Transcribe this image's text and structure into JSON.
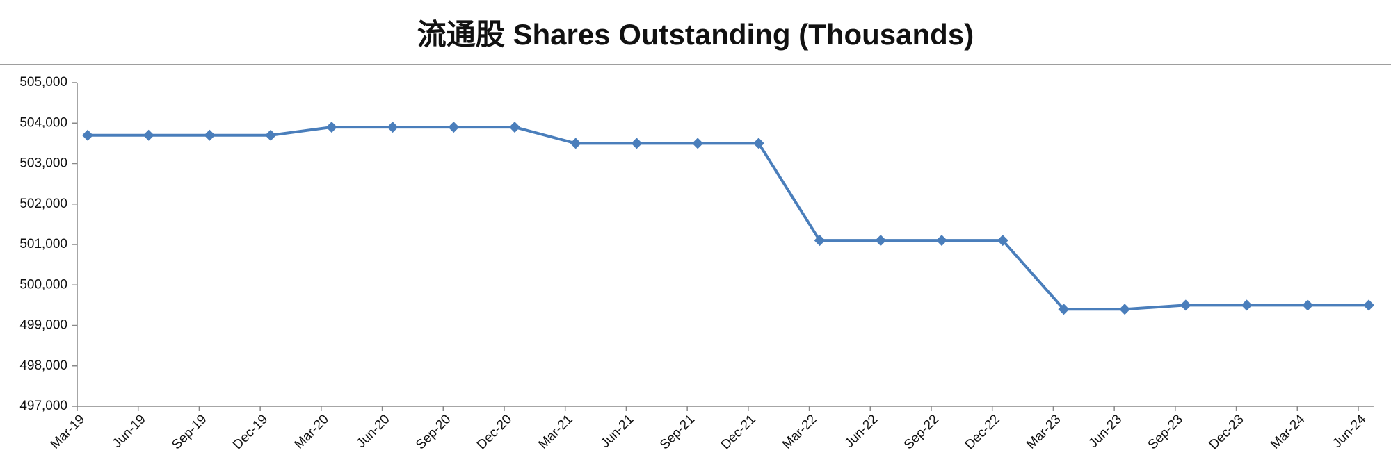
{
  "chart_data": {
    "type": "line",
    "title": "流通股 Shares Outstanding (Thousands)",
    "categories": [
      "Mar-19",
      "Jun-19",
      "Sep-19",
      "Dec-19",
      "Mar-20",
      "Jun-20",
      "Sep-20",
      "Dec-20",
      "Mar-21",
      "Jun-21",
      "Sep-21",
      "Dec-21",
      "Mar-22",
      "Jun-22",
      "Sep-22",
      "Dec-22",
      "Mar-23",
      "Jun-23",
      "Sep-23",
      "Dec-23",
      "Mar-24",
      "Jun-24"
    ],
    "series": [
      {
        "name": "Shares Outstanding",
        "color": "#4a7ebb",
        "values": [
          503700,
          503700,
          503700,
          503700,
          503900,
          503900,
          503900,
          503900,
          503500,
          503500,
          503500,
          503500,
          501100,
          501100,
          501100,
          501100,
          499400,
          499400,
          499500,
          499500,
          499500,
          499500
        ]
      }
    ],
    "ylim": [
      497000,
      505000
    ],
    "yticks": [
      {
        "value": 497000,
        "label": "497,000"
      },
      {
        "value": 498000,
        "label": "498,000"
      },
      {
        "value": 499000,
        "label": "499,000"
      },
      {
        "value": 500000,
        "label": "500,000"
      },
      {
        "value": 501000,
        "label": "501,000"
      },
      {
        "value": 502000,
        "label": "502,000"
      },
      {
        "value": 503000,
        "label": "503,000"
      },
      {
        "value": 504000,
        "label": "504,000"
      },
      {
        "value": 505000,
        "label": "505,000"
      }
    ],
    "grid": false
  }
}
